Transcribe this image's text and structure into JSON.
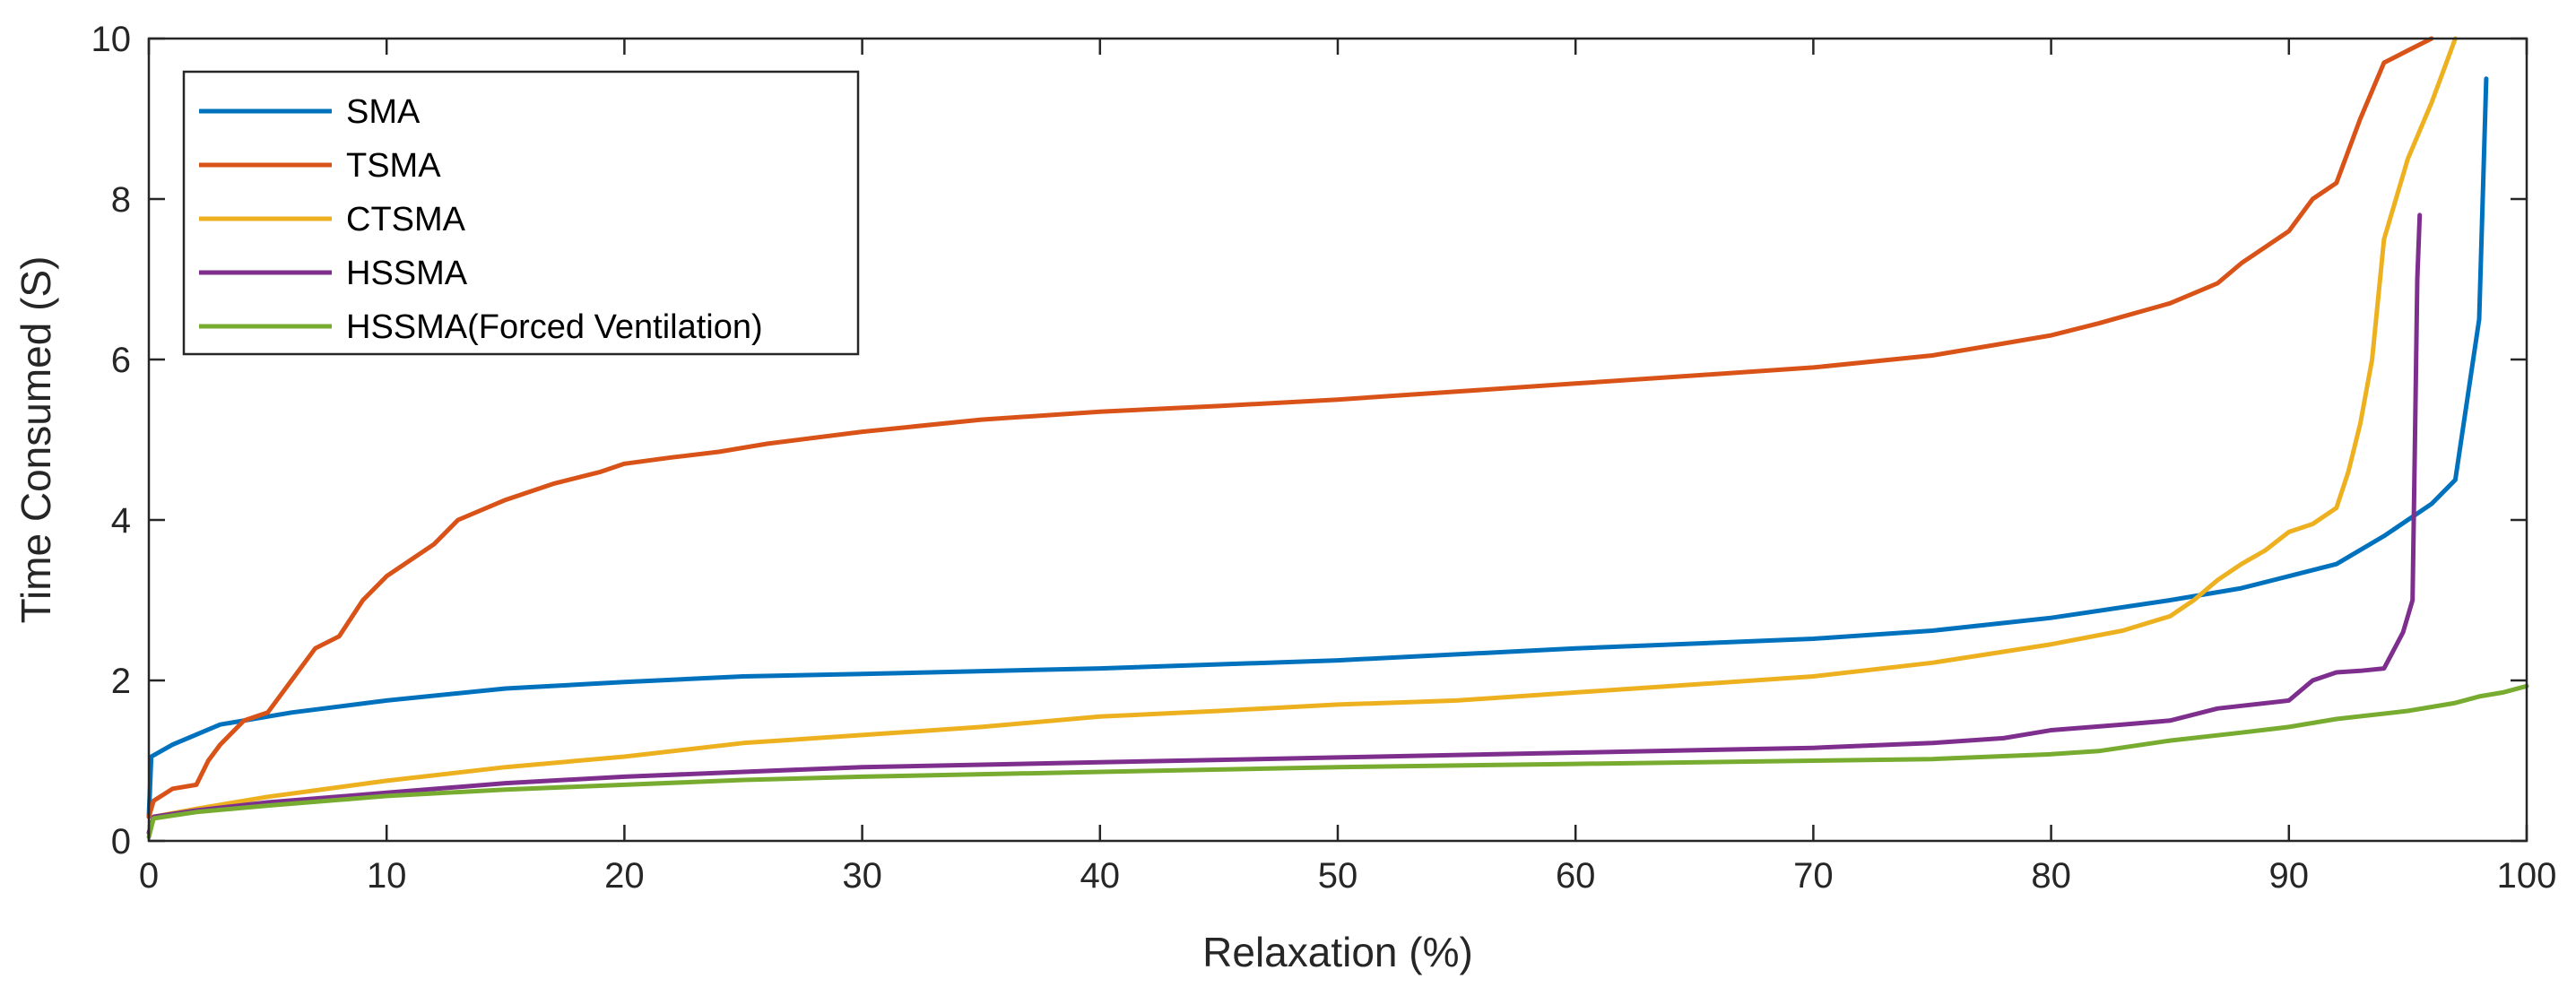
{
  "chart_data": {
    "type": "line",
    "title": "",
    "xlabel": "Relaxation (%)",
    "ylabel": "Time Consumed (S)",
    "xlim": [
      0,
      100
    ],
    "ylim": [
      0,
      10
    ],
    "xticks": [
      "0",
      "10",
      "20",
      "30",
      "40",
      "50",
      "60",
      "70",
      "80",
      "90",
      "100"
    ],
    "yticks": [
      "0",
      "2",
      "4",
      "6",
      "8",
      "10"
    ],
    "grid": false,
    "legend_position": "top-left",
    "series": [
      {
        "name": "SMA",
        "color": "#0072BD",
        "x": [
          0,
          0.1,
          1,
          3,
          6,
          10,
          15,
          20,
          25,
          30,
          40,
          50,
          60,
          70,
          75,
          80,
          85,
          88,
          90,
          92,
          94,
          96,
          97,
          97.5,
          98,
          98.3
        ],
        "y": [
          0.3,
          1.05,
          1.2,
          1.45,
          1.6,
          1.75,
          1.9,
          1.98,
          2.05,
          2.08,
          2.15,
          2.25,
          2.4,
          2.52,
          2.62,
          2.78,
          3.0,
          3.15,
          3.3,
          3.45,
          3.8,
          4.2,
          4.5,
          5.5,
          6.5,
          9.5
        ]
      },
      {
        "name": "TSMA",
        "color": "#D95319",
        "x": [
          0,
          0.2,
          1,
          2,
          2.5,
          3,
          4,
          5,
          6,
          7,
          8,
          9,
          10,
          12,
          13,
          15,
          17,
          19,
          20,
          22,
          24,
          26,
          30,
          35,
          40,
          45,
          50,
          55,
          60,
          65,
          70,
          75,
          78,
          80,
          82,
          85,
          87,
          88,
          89,
          90,
          91,
          92,
          92.5,
          93,
          94,
          95,
          96
        ],
        "y": [
          0.3,
          0.5,
          0.65,
          0.7,
          1.0,
          1.2,
          1.5,
          1.6,
          2.0,
          2.4,
          2.55,
          3.0,
          3.3,
          3.7,
          4.0,
          4.25,
          4.45,
          4.6,
          4.7,
          4.78,
          4.85,
          4.95,
          5.1,
          5.25,
          5.35,
          5.42,
          5.5,
          5.6,
          5.7,
          5.8,
          5.9,
          6.05,
          6.2,
          6.3,
          6.45,
          6.7,
          6.95,
          7.2,
          7.4,
          7.6,
          8.0,
          8.2,
          8.6,
          9.0,
          9.7,
          9.85,
          10.0
        ]
      },
      {
        "name": "CTSMA",
        "color": "#EDB120",
        "x": [
          0,
          0.2,
          2,
          5,
          10,
          15,
          20,
          25,
          30,
          35,
          40,
          45,
          50,
          55,
          60,
          65,
          70,
          75,
          80,
          83,
          85,
          86,
          87,
          88,
          89,
          90,
          91,
          92,
          92.5,
          93,
          93.5,
          94,
          95,
          96,
          96.5,
          97
        ],
        "y": [
          0.1,
          0.3,
          0.4,
          0.55,
          0.75,
          0.92,
          1.05,
          1.22,
          1.32,
          1.42,
          1.55,
          1.62,
          1.7,
          1.75,
          1.85,
          1.95,
          2.05,
          2.22,
          2.45,
          2.62,
          2.8,
          3.0,
          3.25,
          3.45,
          3.62,
          3.85,
          3.95,
          4.15,
          4.6,
          5.2,
          6.0,
          7.5,
          8.5,
          9.2,
          9.6,
          10.0
        ]
      },
      {
        "name": "HSSMA",
        "color": "#7E2F8E",
        "x": [
          0,
          0.2,
          2,
          5,
          10,
          15,
          20,
          25,
          30,
          40,
          50,
          60,
          70,
          75,
          78,
          80,
          83,
          85,
          87,
          90,
          91,
          92,
          93,
          94,
          94.8,
          95,
          95.2,
          95.3,
          95.4,
          95.5
        ],
        "y": [
          0.1,
          0.3,
          0.38,
          0.48,
          0.6,
          0.72,
          0.8,
          0.86,
          0.92,
          0.98,
          1.04,
          1.1,
          1.16,
          1.22,
          1.28,
          1.38,
          1.45,
          1.5,
          1.65,
          1.75,
          2.0,
          2.1,
          2.12,
          2.15,
          2.6,
          2.8,
          3.0,
          5.0,
          7.0,
          7.8
        ]
      },
      {
        "name": "HSSMA(Forced Ventilation)",
        "color": "#77AC30",
        "x": [
          0,
          0.2,
          2,
          5,
          10,
          15,
          20,
          25,
          30,
          40,
          50,
          60,
          70,
          75,
          80,
          82,
          85,
          88,
          90,
          92,
          95,
          97,
          98,
          99,
          100
        ],
        "y": [
          0.05,
          0.28,
          0.36,
          0.44,
          0.56,
          0.64,
          0.7,
          0.76,
          0.8,
          0.86,
          0.92,
          0.96,
          1.0,
          1.02,
          1.08,
          1.12,
          1.25,
          1.35,
          1.42,
          1.52,
          1.62,
          1.72,
          1.8,
          1.85,
          1.93
        ]
      }
    ]
  }
}
